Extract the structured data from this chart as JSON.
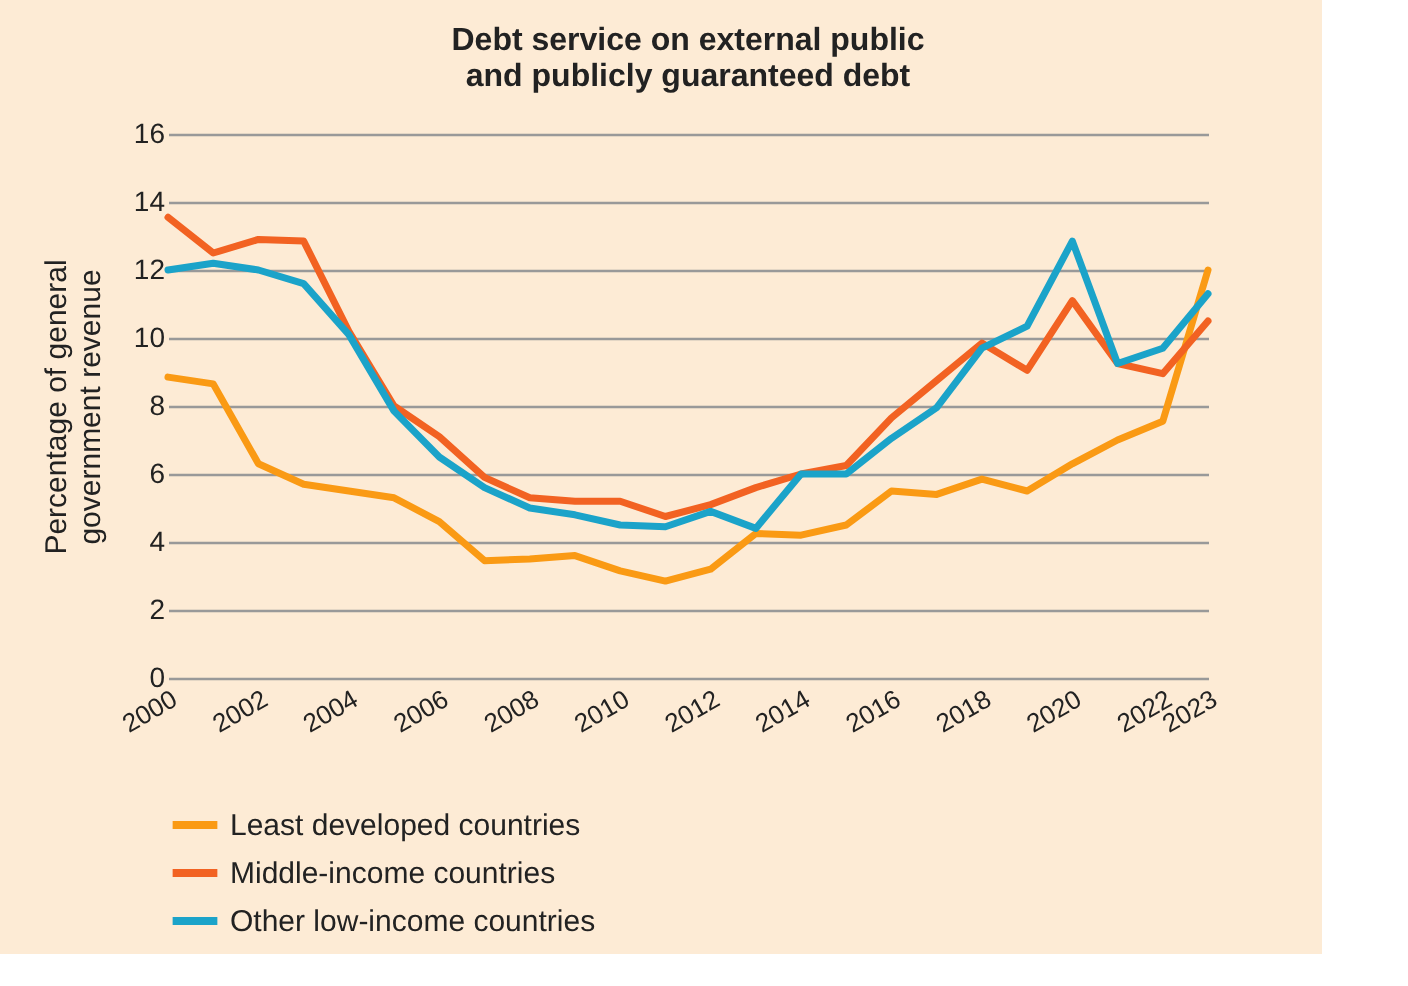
{
  "chart_data": {
    "type": "line",
    "title": [
      "Debt service on external public",
      "and publicly guaranteed debt"
    ],
    "ylabel": [
      "Percentage of general",
      "government revenue"
    ],
    "x": [
      2000,
      2001,
      2002,
      2003,
      2004,
      2005,
      2006,
      2007,
      2008,
      2009,
      2010,
      2011,
      2012,
      2013,
      2014,
      2015,
      2016,
      2017,
      2018,
      2019,
      2020,
      2021,
      2022,
      2023
    ],
    "series": [
      {
        "name": "Least developed countries",
        "color": "#fa9a14",
        "values": [
          8.85,
          8.65,
          6.3,
          5.7,
          5.5,
          5.3,
          4.6,
          3.45,
          3.5,
          3.6,
          3.15,
          2.85,
          3.2,
          4.25,
          4.2,
          4.5,
          5.5,
          5.4,
          5.85,
          5.5,
          6.3,
          7.0,
          7.55,
          12.0
        ]
      },
      {
        "name": "Middle-income countries",
        "color": "#f26222",
        "values": [
          13.55,
          12.5,
          12.9,
          12.85,
          10.2,
          8.0,
          7.1,
          5.9,
          5.3,
          5.2,
          5.2,
          4.75,
          5.1,
          5.6,
          6.0,
          6.25,
          7.65,
          8.75,
          9.85,
          9.05,
          11.1,
          9.25,
          8.95,
          10.5
        ]
      },
      {
        "name": "Other low-income countries",
        "color": "#1ba3c9",
        "values": [
          12.0,
          12.2,
          12.0,
          11.6,
          10.1,
          7.85,
          6.5,
          5.6,
          5.0,
          4.8,
          4.5,
          4.45,
          4.9,
          4.4,
          6.0,
          6.0,
          7.05,
          7.95,
          9.7,
          10.35,
          12.85,
          9.25,
          9.7,
          11.3
        ]
      }
    ],
    "xlim": [
      2000,
      2023
    ],
    "xticks": [
      2000,
      2002,
      2004,
      2006,
      2008,
      2010,
      2012,
      2014,
      2016,
      2018,
      2020,
      2022,
      2023
    ],
    "ylim": [
      0,
      16
    ],
    "yticks": [
      0,
      2,
      4,
      6,
      8,
      10,
      12,
      14,
      16
    ],
    "grid": "y",
    "legend": "bottom",
    "line_style": "solid",
    "marker": "none"
  }
}
